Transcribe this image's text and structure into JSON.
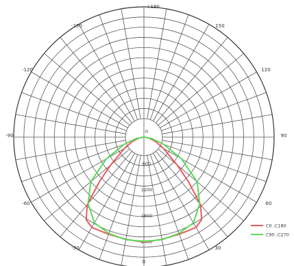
{
  "chart_data": {
    "type": "polar",
    "title": "",
    "angle_labels": [
      {
        "angle": 180,
        "text": "-+180"
      },
      {
        "angle": 150,
        "text": "150"
      },
      {
        "angle": -150,
        "text": "-150"
      },
      {
        "angle": 120,
        "text": "120"
      },
      {
        "angle": -120,
        "text": "-120"
      },
      {
        "angle": 90,
        "text": "90"
      },
      {
        "angle": -90,
        "text": "-90"
      },
      {
        "angle": 60,
        "text": "60"
      },
      {
        "angle": -60,
        "text": "-60"
      },
      {
        "angle": 30,
        "text": "30"
      },
      {
        "angle": -30,
        "text": "-30"
      },
      {
        "angle": 0,
        "text": "0"
      }
    ],
    "radial_max": 3000,
    "radial_rings": 11,
    "radial_labels": [
      {
        "value": 0,
        "text": "0"
      },
      {
        "value": 600,
        "text": "600"
      },
      {
        "value": 1200,
        "text": "1200"
      },
      {
        "value": 1800,
        "text": "1800"
      },
      {
        "value": 2400,
        "text": "2400"
      }
    ],
    "series": [
      {
        "name": "C0  ,C180",
        "color": "#e85a5a",
        "points": [
          {
            "angle": -90,
            "r": 0
          },
          {
            "angle": -80,
            "r": 120
          },
          {
            "angle": -70,
            "r": 280
          },
          {
            "angle": -60,
            "r": 520
          },
          {
            "angle": -50,
            "r": 1000
          },
          {
            "angle": -45,
            "r": 1450
          },
          {
            "angle": -40,
            "r": 2030
          },
          {
            "angle": -35,
            "r": 2320
          },
          {
            "angle": -30,
            "r": 2400
          },
          {
            "angle": -20,
            "r": 2380
          },
          {
            "angle": -10,
            "r": 2390
          },
          {
            "angle": 0,
            "r": 2420
          },
          {
            "angle": 10,
            "r": 2390
          },
          {
            "angle": 20,
            "r": 2380
          },
          {
            "angle": 30,
            "r": 2400
          },
          {
            "angle": 35,
            "r": 2320
          },
          {
            "angle": 40,
            "r": 2030
          },
          {
            "angle": 45,
            "r": 1450
          },
          {
            "angle": 50,
            "r": 1000
          },
          {
            "angle": 60,
            "r": 520
          },
          {
            "angle": 70,
            "r": 280
          },
          {
            "angle": 80,
            "r": 120
          },
          {
            "angle": 90,
            "r": 0
          }
        ]
      },
      {
        "name": "C90  ,C270",
        "color": "#5ad95a",
        "points": [
          {
            "angle": -90,
            "r": 0
          },
          {
            "angle": -80,
            "r": 180
          },
          {
            "angle": -70,
            "r": 480
          },
          {
            "angle": -60,
            "r": 1000
          },
          {
            "angle": -50,
            "r": 1600
          },
          {
            "angle": -40,
            "r": 2000
          },
          {
            "angle": -30,
            "r": 2280
          },
          {
            "angle": -20,
            "r": 2360
          },
          {
            "angle": -10,
            "r": 2400
          },
          {
            "angle": 0,
            "r": 2400
          },
          {
            "angle": 10,
            "r": 2400
          },
          {
            "angle": 20,
            "r": 2360
          },
          {
            "angle": 30,
            "r": 2280
          },
          {
            "angle": 40,
            "r": 2000
          },
          {
            "angle": 50,
            "r": 1600
          },
          {
            "angle": 60,
            "r": 1000
          },
          {
            "angle": 70,
            "r": 480
          },
          {
            "angle": 80,
            "r": 180
          },
          {
            "angle": 90,
            "r": 0
          }
        ]
      }
    ],
    "legend_position": "bottom-right"
  }
}
